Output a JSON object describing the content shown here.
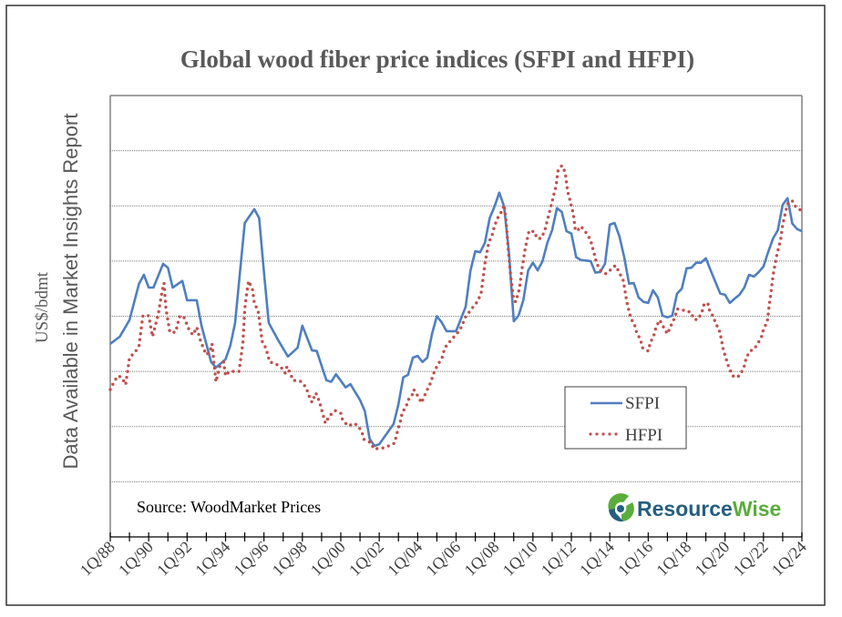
{
  "chart_data": {
    "type": "line",
    "title": "Global wood fiber price indices (SFPI and HFPI)",
    "ylabel": "US$/bdmt",
    "ylabel_note": "Data Available in Market Insights Report",
    "xlabel": "",
    "xlim": [
      1988,
      2024
    ],
    "ylim": [
      0,
      8
    ],
    "y_tick_labels_shown": false,
    "grid": "horizontal dotted",
    "legend_position": "lower-right",
    "x_tick_labels": [
      "1Q/88",
      "1Q/90",
      "1Q/92",
      "1Q/94",
      "1Q/96",
      "1Q/98",
      "1Q/00",
      "1Q/02",
      "1Q/04",
      "1Q/06",
      "1Q/08",
      "1Q/10",
      "1Q/12",
      "1Q/14",
      "1Q/16",
      "1Q/18",
      "1Q/20",
      "1Q/22",
      "1Q/24"
    ],
    "series": [
      {
        "name": "SFPI",
        "color": "#4f7fc0",
        "style": "solid",
        "x": [
          1988.0,
          1988.5,
          1989.0,
          1989.5,
          1989.75,
          1990.0,
          1990.25,
          1990.75,
          1991.0,
          1991.25,
          1991.75,
          1992.0,
          1992.5,
          1992.75,
          1993.0,
          1993.25,
          1993.5,
          1994.0,
          1994.25,
          1994.5,
          1994.75,
          1995.0,
          1995.5,
          1995.75,
          1996.0,
          1996.25,
          1996.75,
          1997.25,
          1997.75,
          1998.0,
          1998.5,
          1998.75,
          1999.25,
          1999.5,
          1999.75,
          2000.25,
          2000.5,
          2001.0,
          2001.25,
          2001.5,
          2001.75,
          2002.0,
          2002.75,
          2003.0,
          2003.25,
          2003.5,
          2003.75,
          2004.0,
          2004.25,
          2004.5,
          2004.75,
          2005.0,
          2005.25,
          2005.5,
          2006.0,
          2006.5,
          2006.75,
          2007.0,
          2007.25,
          2007.5,
          2007.75,
          2008.0,
          2008.25,
          2008.5,
          2008.75,
          2009.0,
          2009.25,
          2009.5,
          2009.75,
          2010.0,
          2010.25,
          2010.5,
          2010.75,
          2011.0,
          2011.25,
          2011.5,
          2011.75,
          2012.0,
          2012.25,
          2012.5,
          2013.0,
          2013.25,
          2013.5,
          2013.75,
          2014.0,
          2014.25,
          2014.5,
          2014.75,
          2015.0,
          2015.25,
          2015.5,
          2015.75,
          2016.0,
          2016.25,
          2016.5,
          2016.75,
          2017.0,
          2017.25,
          2017.5,
          2017.75,
          2018.0,
          2018.25,
          2018.5,
          2018.75,
          2019.0,
          2019.25,
          2019.5,
          2019.75,
          2020.0,
          2020.25,
          2020.5,
          2020.75,
          2021.0,
          2021.25,
          2021.5,
          2021.75,
          2022.0,
          2022.25,
          2022.5,
          2022.75,
          2023.0,
          2023.25,
          2023.5,
          2023.75,
          2024.0
        ],
        "y": [
          3.5,
          3.63,
          3.93,
          4.59,
          4.75,
          4.52,
          4.52,
          4.95,
          4.88,
          4.52,
          4.64,
          4.29,
          4.29,
          3.83,
          3.5,
          3.17,
          3.07,
          3.22,
          3.47,
          3.88,
          4.79,
          5.69,
          5.94,
          5.78,
          4.79,
          3.88,
          3.56,
          3.27,
          3.43,
          3.83,
          3.38,
          3.37,
          2.84,
          2.81,
          2.95,
          2.71,
          2.77,
          2.48,
          2.28,
          1.78,
          1.65,
          1.68,
          2.05,
          2.41,
          2.89,
          2.94,
          3.25,
          3.28,
          3.17,
          3.25,
          3.68,
          4.0,
          3.89,
          3.73,
          3.73,
          4.17,
          4.83,
          5.18,
          5.16,
          5.33,
          5.78,
          5.99,
          6.24,
          5.99,
          5.16,
          3.91,
          4.01,
          4.29,
          4.83,
          4.97,
          4.83,
          5.0,
          5.33,
          5.56,
          5.96,
          5.89,
          5.54,
          5.5,
          5.07,
          5.02,
          5.0,
          4.79,
          4.8,
          4.95,
          5.66,
          5.69,
          5.45,
          5.07,
          4.59,
          4.6,
          4.34,
          4.26,
          4.24,
          4.47,
          4.34,
          4.01,
          3.98,
          4.01,
          4.41,
          4.5,
          4.87,
          4.88,
          4.97,
          4.97,
          5.05,
          4.83,
          4.62,
          4.41,
          4.39,
          4.24,
          4.32,
          4.39,
          4.52,
          4.75,
          4.72,
          4.8,
          4.9,
          5.17,
          5.41,
          5.56,
          6.02,
          6.14,
          5.68,
          5.58,
          5.54
        ]
      },
      {
        "name": "HFPI",
        "color": "#c0504d",
        "style": "dotted",
        "x": [
          1988.0,
          1988.2,
          1988.4,
          1988.6,
          1988.8,
          1989.0,
          1989.3,
          1989.5,
          1989.7,
          1990.0,
          1990.2,
          1990.5,
          1990.7,
          1990.8,
          1990.9,
          1991.1,
          1991.4,
          1991.6,
          1991.8,
          1992.1,
          1992.3,
          1992.5,
          1992.7,
          1993.0,
          1993.2,
          1993.3,
          1993.5,
          1993.7,
          1993.9,
          1994.0,
          1994.2,
          1994.7,
          1994.9,
          1995.0,
          1995.1,
          1995.2,
          1995.4,
          1995.5,
          1995.7,
          1995.8,
          1995.9,
          1996.1,
          1996.3,
          1996.6,
          1996.9,
          1997.1,
          1997.2,
          1997.4,
          1997.5,
          1997.9,
          1998.2,
          1998.3,
          1998.5,
          1998.7,
          1998.9,
          1999.0,
          1999.1,
          1999.2,
          1999.4,
          1999.7,
          2000.0,
          2000.1,
          2000.4,
          2000.7,
          2000.9,
          2001.1,
          2001.2,
          2001.6,
          2001.7,
          2002.0,
          2002.3,
          2002.8,
          2002.9,
          2003.0,
          2003.1,
          2003.2,
          2003.4,
          2003.5,
          2003.7,
          2003.8,
          2004.0,
          2004.2,
          2004.3,
          2004.5,
          2004.7,
          2004.8,
          2005.0,
          2005.3,
          2005.4,
          2005.6,
          2005.9,
          2006.2,
          2006.5,
          2006.8,
          2007.1,
          2007.3,
          2007.4,
          2007.5,
          2007.7,
          2007.9,
          2008.0,
          2008.2,
          2008.4,
          2008.5,
          2008.6,
          2008.7,
          2008.8,
          2008.9,
          2009.0,
          2009.1,
          2009.3,
          2009.4,
          2009.6,
          2009.8,
          2010.1,
          2010.2,
          2010.4,
          2010.6,
          2010.8,
          2010.9,
          2011.1,
          2011.2,
          2011.3,
          2011.5,
          2011.6,
          2011.7,
          2011.8,
          2011.9,
          2012.1,
          2012.2,
          2012.3,
          2012.5,
          2012.8,
          2013.0,
          2013.1,
          2013.2,
          2013.3,
          2013.5,
          2013.8,
          2014.0,
          2014.3,
          2014.5,
          2014.7,
          2014.9,
          2015.0,
          2015.1,
          2015.3,
          2015.4,
          2015.6,
          2015.7,
          2016.0,
          2016.1,
          2016.3,
          2016.4,
          2016.6,
          2016.8,
          2017.0,
          2017.2,
          2017.4,
          2017.5,
          2017.7,
          2018.0,
          2018.2,
          2018.4,
          2018.6,
          2018.8,
          2018.9,
          2019.1,
          2019.2,
          2019.4,
          2019.5,
          2019.7,
          2019.8,
          2019.9,
          2020.1,
          2020.2,
          2020.4,
          2020.6,
          2020.8,
          2021.0,
          2021.1,
          2021.3,
          2021.5,
          2021.7,
          2021.9,
          2022.0,
          2022.2,
          2022.3,
          2022.4,
          2022.5,
          2022.7,
          2022.9,
          2023.0,
          2023.1,
          2023.2,
          2023.3,
          2023.5,
          2023.7,
          2024.0
        ],
        "y": [
          2.67,
          2.81,
          2.92,
          2.89,
          2.76,
          3.25,
          3.35,
          3.47,
          4.01,
          4.01,
          3.63,
          4.04,
          4.46,
          4.6,
          4.14,
          3.71,
          3.71,
          3.99,
          4.01,
          3.76,
          3.66,
          3.8,
          3.55,
          3.3,
          3.37,
          3.5,
          2.81,
          3.09,
          3.17,
          2.92,
          3.0,
          3.0,
          3.51,
          4.13,
          4.41,
          4.64,
          4.49,
          4.24,
          4.09,
          3.84,
          3.55,
          3.42,
          3.17,
          3.14,
          3.07,
          2.97,
          3.09,
          2.94,
          2.84,
          2.82,
          2.71,
          2.59,
          2.44,
          2.61,
          2.44,
          2.31,
          2.18,
          2.06,
          2.19,
          2.29,
          2.24,
          2.11,
          2.01,
          2.06,
          2.01,
          1.9,
          1.77,
          1.7,
          1.6,
          1.6,
          1.62,
          1.7,
          1.85,
          1.98,
          2.1,
          2.26,
          2.36,
          2.48,
          2.56,
          2.67,
          2.56,
          2.43,
          2.52,
          2.67,
          2.81,
          2.94,
          3.09,
          3.27,
          3.42,
          3.51,
          3.63,
          3.75,
          3.99,
          4.13,
          4.26,
          4.41,
          4.67,
          4.95,
          5.33,
          5.5,
          5.64,
          5.81,
          5.91,
          6.02,
          5.73,
          5.28,
          4.87,
          4.57,
          4.29,
          4.26,
          4.5,
          4.79,
          5.23,
          5.55,
          5.53,
          5.41,
          5.41,
          5.53,
          5.81,
          5.94,
          6.22,
          6.35,
          6.63,
          6.73,
          6.68,
          6.55,
          6.27,
          6.14,
          5.86,
          5.58,
          5.54,
          5.63,
          5.5,
          5.38,
          5.25,
          5.12,
          4.98,
          4.83,
          4.77,
          4.83,
          4.92,
          4.79,
          4.65,
          4.24,
          4.09,
          3.96,
          3.83,
          3.7,
          3.58,
          3.43,
          3.37,
          3.51,
          3.66,
          3.8,
          3.93,
          3.8,
          3.68,
          3.84,
          3.99,
          4.13,
          4.13,
          4.08,
          4.08,
          3.94,
          3.94,
          4.08,
          4.21,
          4.24,
          4.09,
          3.99,
          3.88,
          3.75,
          3.6,
          3.4,
          3.18,
          3.07,
          2.92,
          2.89,
          2.94,
          3.1,
          3.25,
          3.37,
          3.4,
          3.5,
          3.63,
          3.76,
          3.91,
          4.21,
          4.46,
          4.75,
          5.12,
          5.4,
          5.66,
          5.81,
          5.96,
          6.07,
          6.09,
          5.97,
          5.91
        ]
      }
    ],
    "annotations": {
      "source": "Source: WoodMarket Prices"
    }
  },
  "logo": {
    "text_part1": "Resource",
    "text_part2": "Wise",
    "color1": "#245e80",
    "color2": "#5aad3c"
  }
}
